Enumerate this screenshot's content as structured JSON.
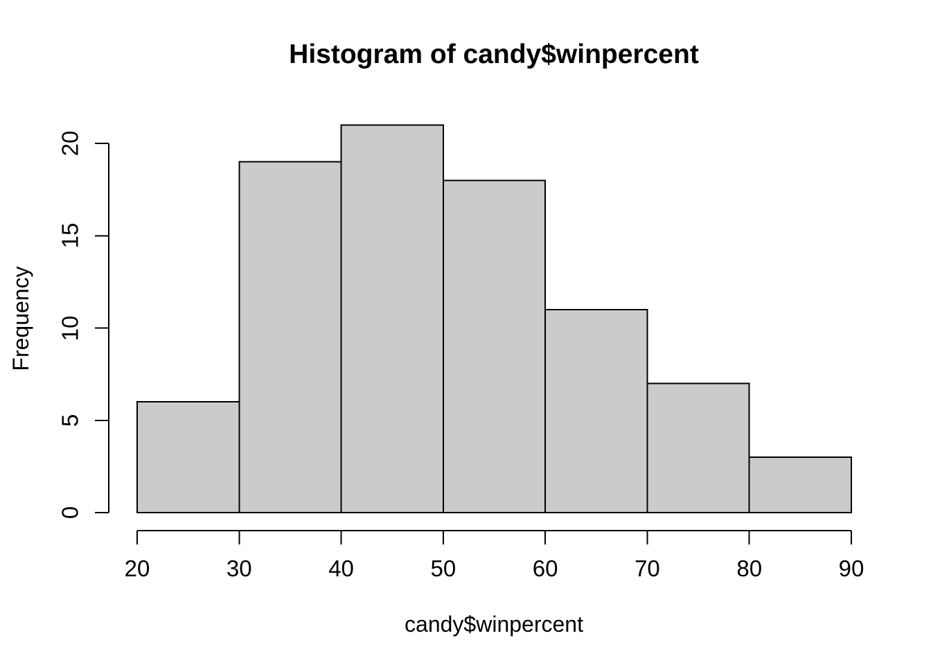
{
  "chart_data": {
    "type": "bar",
    "subtype": "histogram",
    "title": "Histogram of candy$winpercent",
    "xlabel": "candy$winpercent",
    "ylabel": "Frequency",
    "breaks": [
      20,
      30,
      40,
      50,
      60,
      70,
      80,
      90
    ],
    "counts": [
      6,
      19,
      21,
      18,
      11,
      7,
      3
    ],
    "x_tick_labels": [
      "20",
      "30",
      "40",
      "50",
      "60",
      "70",
      "80",
      "90"
    ],
    "x_tick_values": [
      20,
      30,
      40,
      50,
      60,
      70,
      80,
      90
    ],
    "y_tick_labels": [
      "0",
      "5",
      "10",
      "15",
      "20"
    ],
    "y_tick_values": [
      0,
      5,
      10,
      15,
      20
    ],
    "xlim": [
      20,
      90
    ],
    "ylim": [
      0,
      20
    ],
    "grid": false,
    "legend": "none",
    "colors": {
      "bar_fill": "#cbcbcb",
      "bar_stroke": "#000000",
      "axis": "#000000",
      "text": "#000000",
      "background": "#ffffff"
    }
  }
}
